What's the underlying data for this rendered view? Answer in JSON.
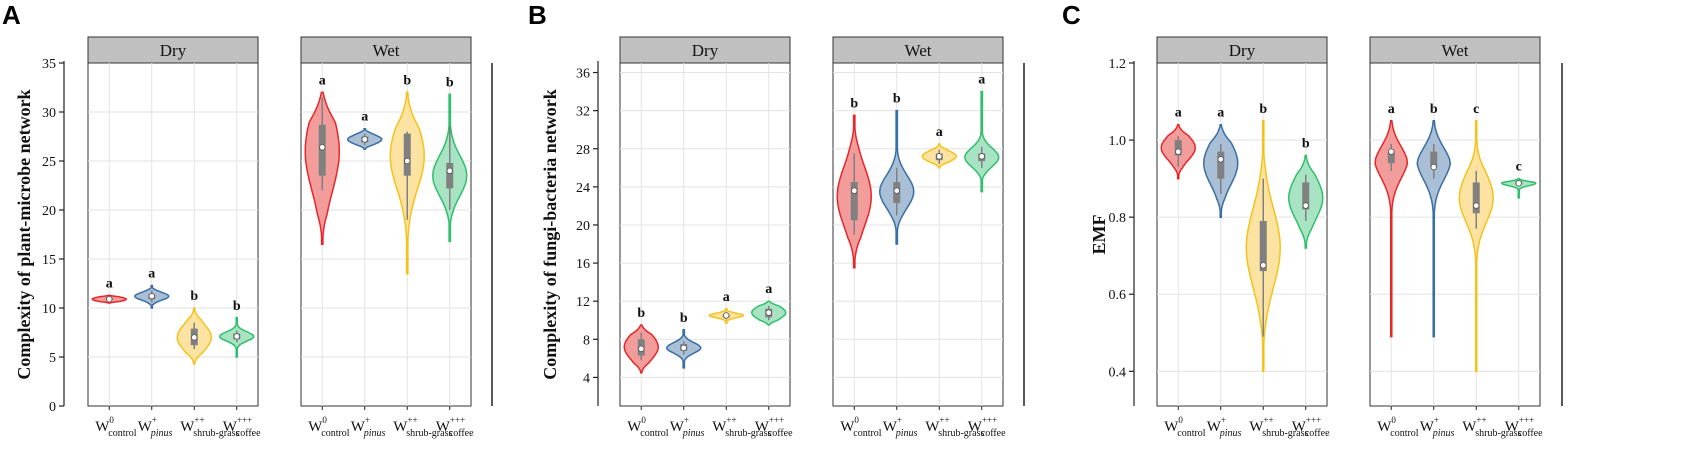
{
  "figure": {
    "categories": [
      {
        "base": "W",
        "sup": "0",
        "sub": "control",
        "sub_italic": false
      },
      {
        "base": "W",
        "sup": "+",
        "sub": "pinus",
        "sub_italic": true
      },
      {
        "base": "W",
        "sup": "++",
        "sub": "shrub-grass",
        "sub_italic": false
      },
      {
        "base": "W",
        "sup": "+++",
        "sub": "coffee",
        "sub_italic": false
      }
    ],
    "colors": {
      "control": {
        "line": "#e8262a",
        "fill": "#f29c9c"
      },
      "pinus": {
        "line": "#3a6ea5",
        "fill": "#a9bfd6"
      },
      "shrub": {
        "line": "#f5c21b",
        "fill": "#fde3a1"
      },
      "coffee": {
        "line": "#2fbf6a",
        "fill": "#a8e4c3"
      },
      "box": "#808080"
    }
  },
  "chart_data": [
    {
      "id": "A",
      "label": "A",
      "type": "violin",
      "ylabel": "Complexity of plant-microbe network",
      "ylim": [
        0,
        35
      ],
      "yticks": [
        0,
        5,
        10,
        15,
        20,
        25,
        30,
        35
      ],
      "ytick_labels": [
        "0",
        "5",
        "10",
        "15",
        "20",
        "25",
        "30",
        "35"
      ],
      "facets": [
        {
          "title": "Dry",
          "groups": [
            {
              "cat": "control",
              "min": 10.5,
              "max": 11.3,
              "q1": 10.8,
              "q3": 11.1,
              "median": 10.9,
              "mean": 10.9,
              "wmin": 10.8,
              "wmax": 11.1,
              "sig": "a"
            },
            {
              "cat": "pinus",
              "min": 10.0,
              "max": 12.3,
              "q1": 10.9,
              "q3": 11.4,
              "median": 11.2,
              "mean": 11.2,
              "wmin": 10.6,
              "wmax": 11.8,
              "sig": "a"
            },
            {
              "cat": "shrub",
              "min": 4.3,
              "max": 10.0,
              "q1": 6.2,
              "q3": 7.9,
              "median": 7.0,
              "mean": 7.0,
              "wmin": 5.8,
              "wmax": 8.5,
              "sig": "b"
            },
            {
              "cat": "coffee",
              "min": 5.0,
              "max": 9.0,
              "q1": 6.8,
              "q3": 7.4,
              "median": 7.1,
              "mean": 7.1,
              "wmin": 6.5,
              "wmax": 7.7,
              "sig": "b"
            }
          ]
        },
        {
          "title": "Wet",
          "groups": [
            {
              "cat": "control",
              "min": 16.5,
              "max": 32.0,
              "q1": 23.5,
              "q3": 28.7,
              "median": 26.0,
              "mean": 26.4,
              "wmin": 22.0,
              "wmax": 31.5,
              "sig": "a"
            },
            {
              "cat": "pinus",
              "min": 26.2,
              "max": 28.3,
              "q1": 26.9,
              "q3": 27.5,
              "median": 27.2,
              "mean": 27.2,
              "wmin": 26.6,
              "wmax": 27.8,
              "sig": "a"
            },
            {
              "cat": "shrub",
              "min": 13.5,
              "max": 32.0,
              "q1": 23.5,
              "q3": 27.8,
              "median": 25.5,
              "mean": 25.0,
              "wmin": 19.0,
              "wmax": 28.0,
              "sig": "b"
            },
            {
              "cat": "coffee",
              "min": 16.8,
              "max": 31.8,
              "q1": 22.2,
              "q3": 24.8,
              "median": 23.5,
              "mean": 24.0,
              "wmin": 20.0,
              "wmax": 28.5,
              "sig": "b"
            }
          ]
        }
      ]
    },
    {
      "id": "B",
      "label": "B",
      "type": "violin",
      "ylabel": "Complexity of fungi-bacteria network",
      "ylim": [
        1,
        37
      ],
      "yticks": [
        4,
        8,
        12,
        16,
        20,
        24,
        28,
        32,
        36
      ],
      "ytick_labels": [
        "4",
        "8",
        "12",
        "16",
        "20",
        "24",
        "28",
        "32",
        "36"
      ],
      "facets": [
        {
          "title": "Dry",
          "groups": [
            {
              "cat": "control",
              "min": 4.5,
              "max": 9.5,
              "q1": 6.3,
              "q3": 8.0,
              "median": 7.2,
              "mean": 7.0,
              "wmin": 5.8,
              "wmax": 8.7,
              "sig": "b"
            },
            {
              "cat": "pinus",
              "min": 5.0,
              "max": 9.0,
              "q1": 6.8,
              "q3": 7.5,
              "median": 7.1,
              "mean": 7.1,
              "wmin": 6.4,
              "wmax": 7.8,
              "sig": "b"
            },
            {
              "cat": "shrub",
              "min": 9.7,
              "max": 11.2,
              "q1": 10.3,
              "q3": 10.6,
              "median": 10.5,
              "mean": 10.5,
              "wmin": 10.1,
              "wmax": 10.8,
              "sig": "a"
            },
            {
              "cat": "coffee",
              "min": 9.5,
              "max": 12.0,
              "q1": 10.3,
              "q3": 11.2,
              "median": 10.8,
              "mean": 10.8,
              "wmin": 10.0,
              "wmax": 11.5,
              "sig": "a"
            }
          ]
        },
        {
          "title": "Wet",
          "groups": [
            {
              "cat": "control",
              "min": 15.5,
              "max": 31.5,
              "q1": 20.5,
              "q3": 24.5,
              "median": 23.0,
              "mean": 23.6,
              "wmin": 19.0,
              "wmax": 27.5,
              "sig": "b"
            },
            {
              "cat": "pinus",
              "min": 18.0,
              "max": 32.0,
              "q1": 22.3,
              "q3": 24.5,
              "median": 23.5,
              "mean": 23.6,
              "wmin": 21.0,
              "wmax": 26.0,
              "sig": "b"
            },
            {
              "cat": "shrub",
              "min": 26.0,
              "max": 28.5,
              "q1": 26.8,
              "q3": 27.5,
              "median": 27.2,
              "mean": 27.2,
              "wmin": 26.4,
              "wmax": 27.9,
              "sig": "a"
            },
            {
              "cat": "coffee",
              "min": 23.5,
              "max": 34.0,
              "q1": 26.7,
              "q3": 27.5,
              "median": 27.1,
              "mean": 27.2,
              "wmin": 26.0,
              "wmax": 28.2,
              "sig": "a"
            }
          ]
        }
      ]
    },
    {
      "id": "C",
      "label": "C",
      "type": "violin",
      "ylabel": "EMF",
      "ylim": [
        0.31,
        1.2
      ],
      "yticks": [
        0.4,
        0.6,
        0.8,
        1.0,
        1.2
      ],
      "ytick_labels": [
        "0.4",
        "0.6",
        "0.8",
        "1.0",
        "1.2"
      ],
      "facets": [
        {
          "title": "Dry",
          "groups": [
            {
              "cat": "control",
              "min": 0.9,
              "max": 1.04,
              "q1": 0.96,
              "q3": 1.0,
              "median": 0.98,
              "mean": 0.97,
              "wmin": 0.93,
              "wmax": 1.01,
              "sig": "a"
            },
            {
              "cat": "pinus",
              "min": 0.8,
              "max": 1.04,
              "q1": 0.9,
              "q3": 0.97,
              "median": 0.94,
              "mean": 0.95,
              "wmin": 0.86,
              "wmax": 0.99,
              "sig": "a"
            },
            {
              "cat": "shrub",
              "min": 0.4,
              "max": 1.05,
              "q1": 0.66,
              "q3": 0.79,
              "median": 0.72,
              "mean": 0.675,
              "wmin": 0.49,
              "wmax": 0.9,
              "sig": "b"
            },
            {
              "cat": "coffee",
              "min": 0.72,
              "max": 0.96,
              "q1": 0.82,
              "q3": 0.89,
              "median": 0.85,
              "mean": 0.83,
              "wmin": 0.79,
              "wmax": 0.91,
              "sig": "b"
            }
          ]
        },
        {
          "title": "Wet",
          "groups": [
            {
              "cat": "control",
              "min": 0.49,
              "max": 1.05,
              "q1": 0.94,
              "q3": 0.97,
              "median": 0.955,
              "mean": 0.97,
              "wmin": 0.92,
              "wmax": 0.99,
              "sig": "a"
            },
            {
              "cat": "pinus",
              "min": 0.49,
              "max": 1.05,
              "q1": 0.93,
              "q3": 0.97,
              "median": 0.95,
              "mean": 0.93,
              "wmin": 0.9,
              "wmax": 0.99,
              "sig": "b"
            },
            {
              "cat": "shrub",
              "min": 0.4,
              "max": 1.05,
              "q1": 0.81,
              "q3": 0.89,
              "median": 0.85,
              "mean": 0.83,
              "wmin": 0.77,
              "wmax": 0.92,
              "sig": "c"
            },
            {
              "cat": "coffee",
              "min": 0.85,
              "max": 0.9,
              "q1": 0.885,
              "q3": 0.893,
              "median": 0.888,
              "mean": 0.888,
              "wmin": 0.88,
              "wmax": 0.895,
              "sig": "c"
            }
          ]
        }
      ]
    }
  ]
}
